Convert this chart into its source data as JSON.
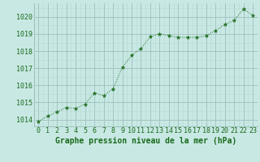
{
  "x": [
    0,
    1,
    2,
    3,
    4,
    5,
    6,
    7,
    8,
    9,
    10,
    11,
    12,
    13,
    14,
    15,
    16,
    17,
    18,
    19,
    20,
    21,
    22,
    23
  ],
  "y": [
    1013.9,
    1014.2,
    1014.45,
    1014.7,
    1014.65,
    1014.9,
    1015.55,
    1015.4,
    1015.8,
    1017.05,
    1017.75,
    1018.15,
    1018.85,
    1019.0,
    1018.9,
    1018.8,
    1018.8,
    1018.8,
    1018.9,
    1019.2,
    1019.55,
    1019.8,
    1020.45,
    1020.1
  ],
  "line_color": "#1a6b1a",
  "marker": "*",
  "marker_size": 3.5,
  "bg_color": "#c8e8e4",
  "grid_color_major": "#9dbfbc",
  "grid_color_minor": "#b8d8d4",
  "xlabel": "Graphe pression niveau de la mer (hPa)",
  "xlabel_color": "#1a6b1a",
  "tick_color": "#1a6b1a",
  "ylim": [
    1013.6,
    1020.8
  ],
  "yticks": [
    1014,
    1015,
    1016,
    1017,
    1018,
    1019,
    1020
  ],
  "xticks": [
    0,
    1,
    2,
    3,
    4,
    5,
    6,
    7,
    8,
    9,
    10,
    11,
    12,
    13,
    14,
    15,
    16,
    17,
    18,
    19,
    20,
    21,
    22,
    23
  ],
  "font_size_xlabel": 7.0,
  "font_size_ticks": 6.0
}
